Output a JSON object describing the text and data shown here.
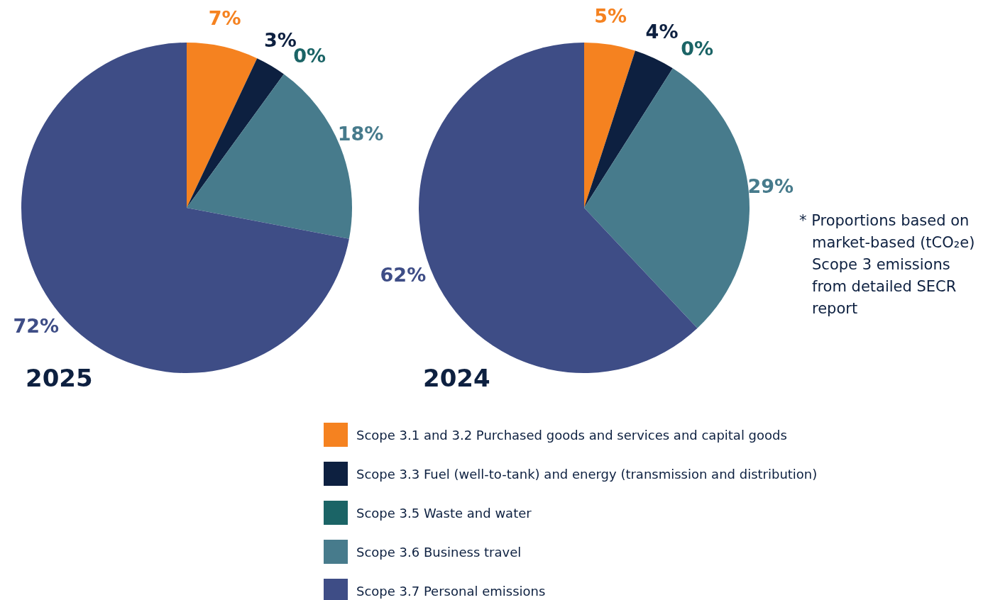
{
  "chart_data": [
    {
      "type": "pie",
      "title": "2025",
      "categories": [
        "Scope 3.1 and 3.2 Purchased goods and services and capital goods",
        "Scope 3.3 Fuel (well-to-tank) and energy (transmission and distribution)",
        "Scope 3.5 Waste and water",
        "Scope 3.6 Business travel",
        "Scope 3.7 Personal emissions"
      ],
      "values": [
        7,
        3,
        0,
        18,
        72
      ],
      "value_labels": [
        "7%",
        "3%",
        "0%",
        "18%",
        "72%"
      ],
      "colors": [
        "#f58220",
        "#0d2040",
        "#1b6466",
        "#477b8c",
        "#3e4d86"
      ],
      "legend": "bottom"
    },
    {
      "type": "pie",
      "title": "2024",
      "categories": [
        null,
        null,
        null,
        null,
        null
      ],
      "values": [
        5,
        4,
        0,
        29,
        62
      ],
      "value_labels": [
        "5%",
        "4%",
        "0%",
        "29%",
        "62%"
      ],
      "colors": [
        "#f58220",
        "#0d2040",
        "#1b6466",
        "#477b8c",
        "#3e4d86"
      ],
      "annotations": [
        "* Proportions based on market-based (tCO₂e) Scope 3 emissions from detailed SECR report"
      ]
    }
  ]
}
